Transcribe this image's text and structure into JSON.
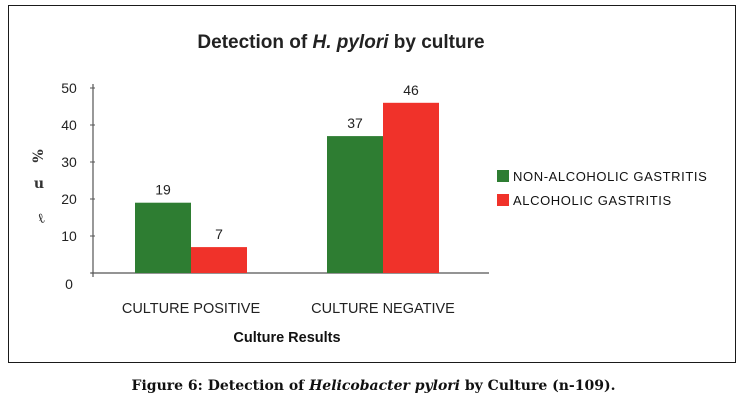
{
  "chart_data": {
    "type": "bar",
    "title_parts": [
      "Detection of ",
      "H. pylori",
      " by culture"
    ],
    "xlabel": "Culture Results",
    "ylabel_chars": [
      "%",
      "u",
      "ℓ"
    ],
    "categories": [
      "CULTURE POSITIVE",
      "CULTURE NEGATIVE"
    ],
    "series": [
      {
        "name": "NON-ALCOHOLIC GASTRITIS",
        "color": "#2e7d32",
        "values": [
          19,
          37
        ]
      },
      {
        "name": "ALCOHOLIC GASTRITIS",
        "color": "#f0322a",
        "values": [
          7,
          46
        ]
      }
    ],
    "data_labels": [
      [
        "19",
        "37"
      ],
      [
        "7",
        "46"
      ]
    ],
    "yticks": [
      "0",
      "10",
      "20",
      "30",
      "40",
      "50"
    ],
    "ylim": [
      0,
      50
    ],
    "legend_position": "right",
    "grid": false
  },
  "caption": {
    "prefix": "Figure 6: Detection of ",
    "italic": "Helicobacter pylori",
    "suffix": " by Culture (n-109)."
  }
}
